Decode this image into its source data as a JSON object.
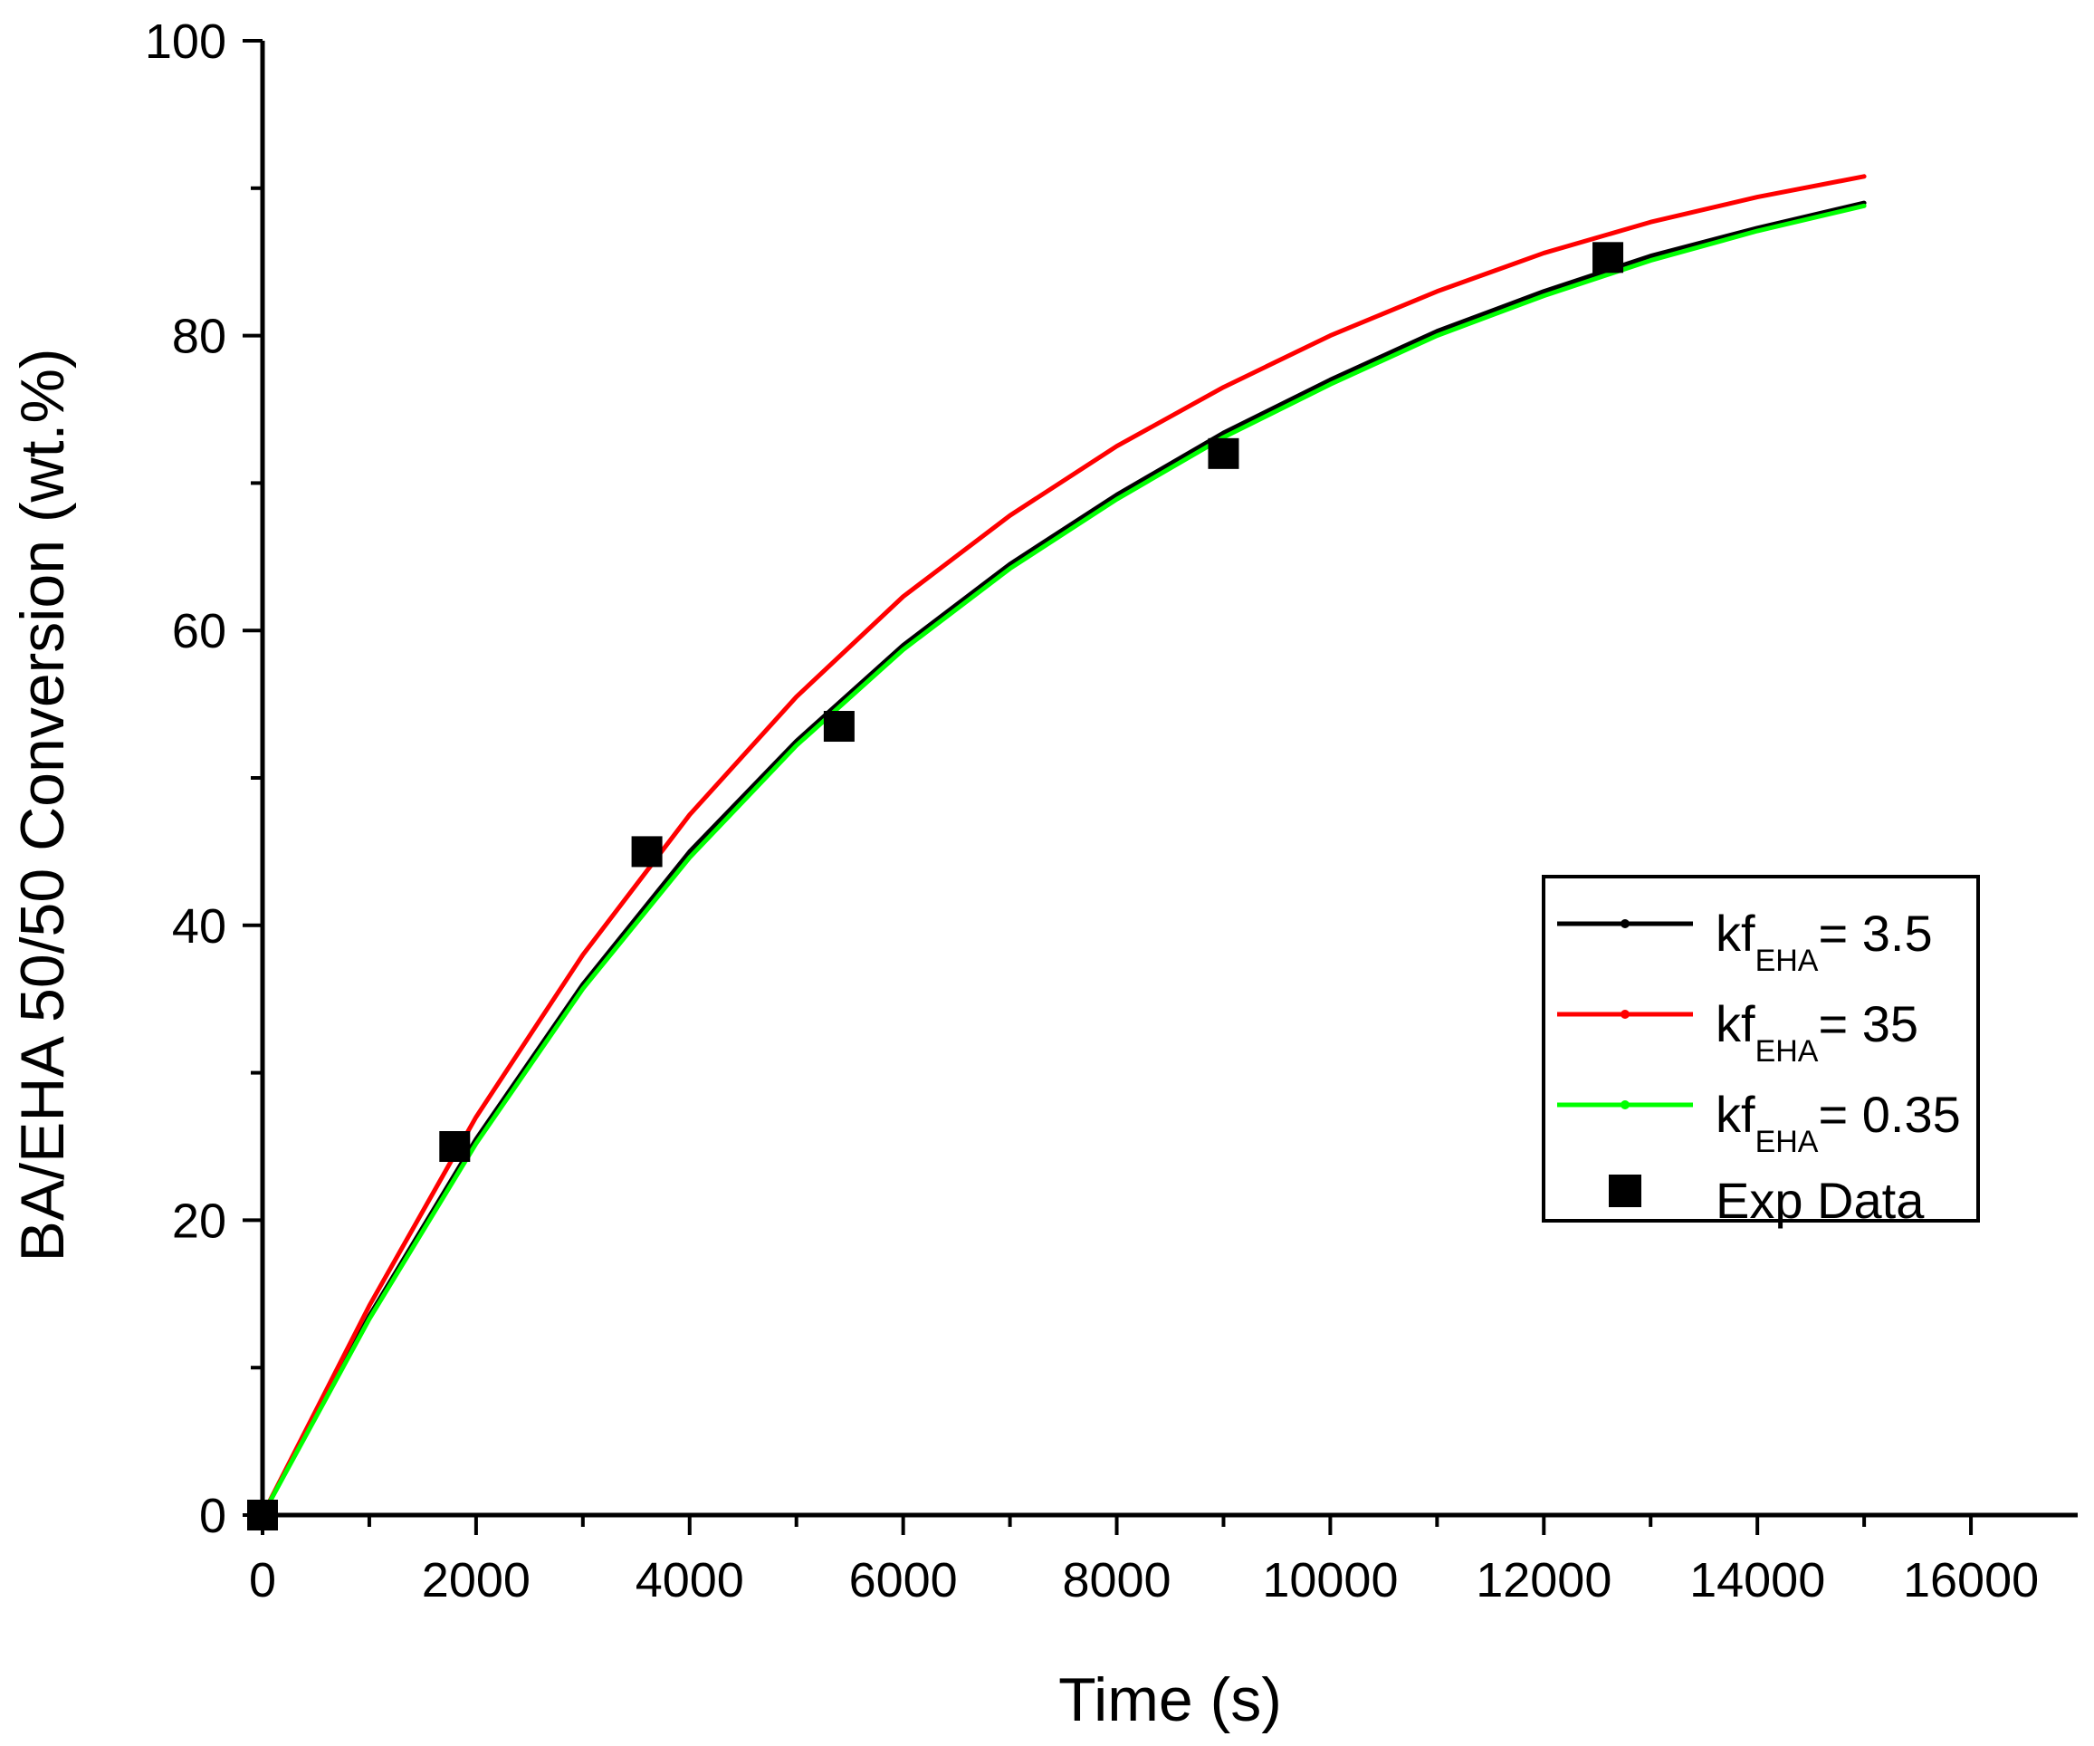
{
  "chart_data": {
    "type": "line",
    "title": "",
    "xlabel": "Time (s)",
    "ylabel": "BA/EHA 50/50 Conversion (wt.%)",
    "xlim": [
      0,
      17000
    ],
    "ylim": [
      0,
      100
    ],
    "x_ticks": [
      0,
      2000,
      4000,
      6000,
      8000,
      10000,
      12000,
      14000,
      16000
    ],
    "y_ticks": [
      0,
      20,
      40,
      60,
      80,
      100
    ],
    "x_tick_labels": [
      "0",
      "2000",
      "4000",
      "6000",
      "8000",
      "10000",
      "12000",
      "14000",
      "16000"
    ],
    "y_tick_labels": [
      "0",
      "20",
      "40",
      "60",
      "80",
      "100"
    ],
    "grid": false,
    "legend_position": "right",
    "series": [
      {
        "name_main": "kf",
        "name_sub": "EHA",
        "name_value": "= 3.5",
        "kind": "line",
        "color": "#000000",
        "x": [
          0,
          1000,
          2000,
          3000,
          4000,
          5000,
          6000,
          7000,
          8000,
          9000,
          10000,
          11000,
          12000,
          13000,
          14000,
          15000
        ],
        "y": [
          0,
          13.5,
          25.5,
          36.0,
          45.0,
          52.5,
          59.0,
          64.5,
          69.2,
          73.4,
          77.0,
          80.3,
          83.0,
          85.4,
          87.3,
          89.0
        ]
      },
      {
        "name_main": "kf",
        "name_sub": "EHA",
        "name_value": "= 35",
        "kind": "line",
        "color": "#ff0000",
        "x": [
          0,
          1000,
          2000,
          3000,
          4000,
          5000,
          6000,
          7000,
          8000,
          9000,
          10000,
          11000,
          12000,
          13000,
          14000,
          15000
        ],
        "y": [
          0,
          14.2,
          27.0,
          38.0,
          47.5,
          55.5,
          62.3,
          67.8,
          72.5,
          76.5,
          80.0,
          83.0,
          85.6,
          87.7,
          89.4,
          90.8
        ]
      },
      {
        "name_main": "kf",
        "name_sub": "EHA",
        "name_value": "= 0.35",
        "kind": "line",
        "color": "#00ff00",
        "x": [
          0,
          1000,
          2000,
          3000,
          4000,
          5000,
          6000,
          7000,
          8000,
          9000,
          10000,
          11000,
          12000,
          13000,
          14000,
          15000
        ],
        "y": [
          0,
          13.3,
          25.2,
          35.7,
          44.6,
          52.2,
          58.7,
          64.2,
          68.9,
          73.1,
          76.7,
          80.0,
          82.7,
          85.1,
          87.1,
          88.8
        ]
      },
      {
        "name": "Exp Data",
        "kind": "scatter",
        "color": "#000000",
        "x": [
          0,
          1800,
          3600,
          5400,
          9000,
          12600
        ],
        "y": [
          0,
          25,
          45,
          53.5,
          72,
          85.3
        ]
      }
    ]
  }
}
